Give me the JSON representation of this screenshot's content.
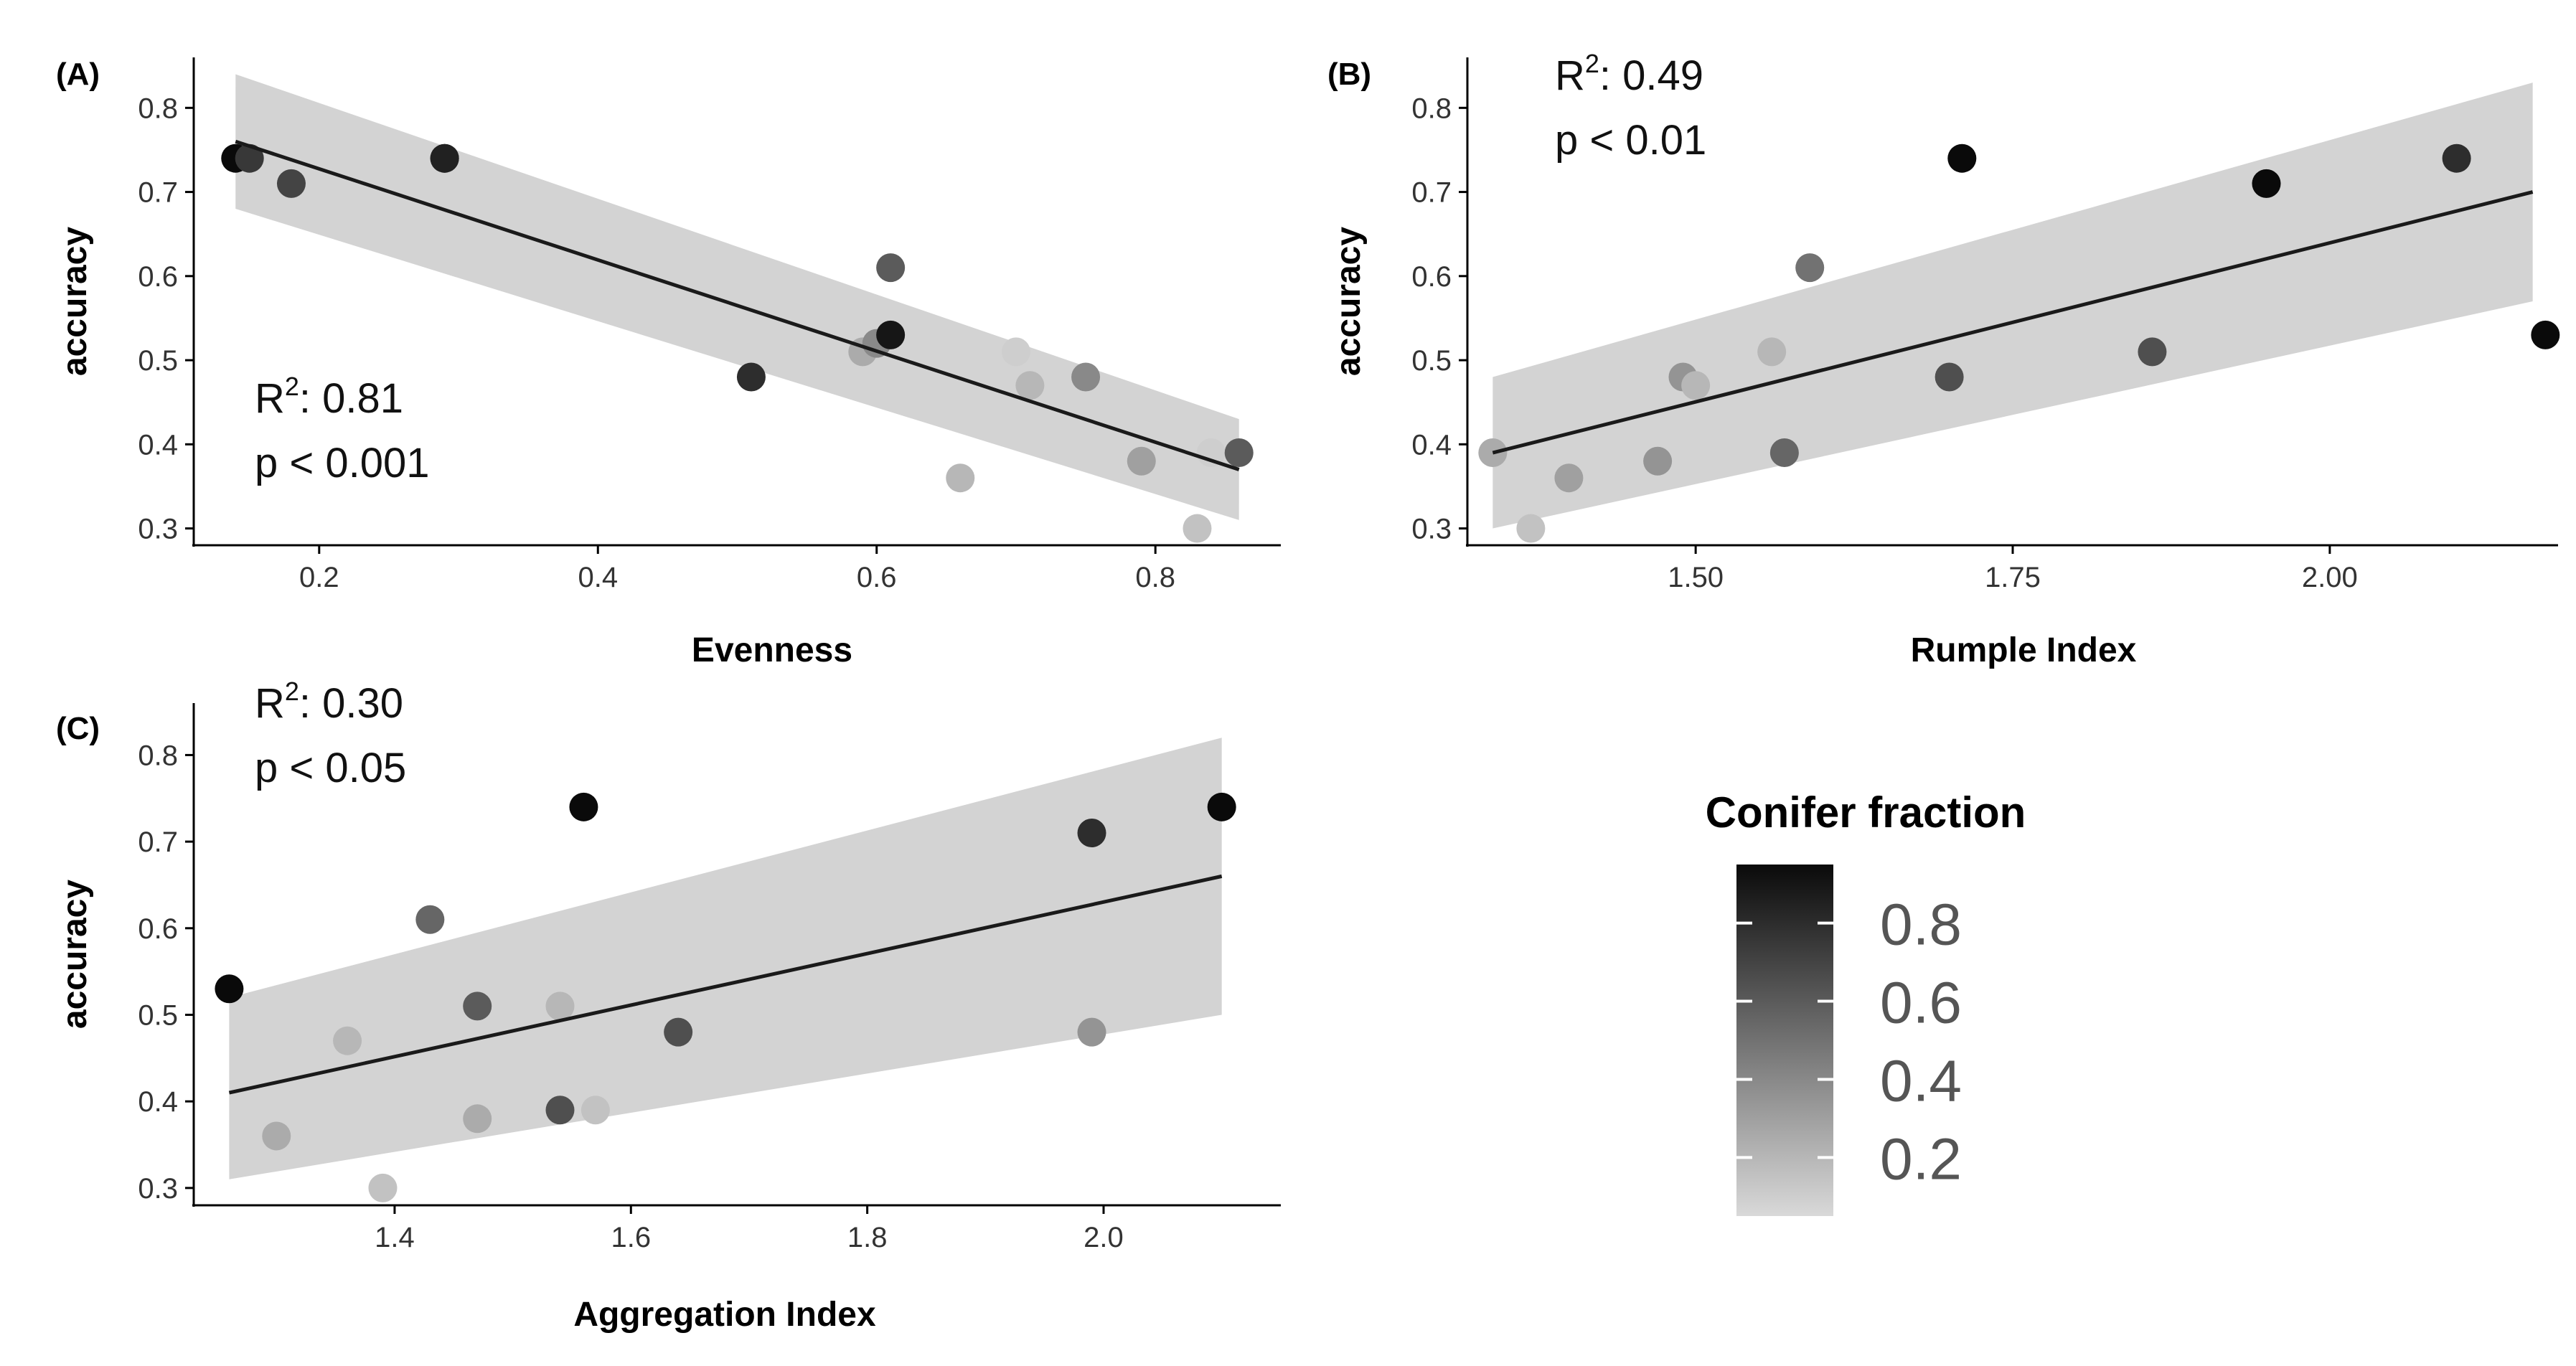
{
  "colors": {
    "low": "#d9d9d9",
    "high": "#0a0a0a",
    "band": "#d3d3d3",
    "line": "#1a1a1a"
  },
  "legend": {
    "title": "Conifer fraction",
    "ticks": [
      0.8,
      0.6,
      0.4,
      0.2
    ],
    "tick_labels": [
      "0.8",
      "0.6",
      "0.4",
      "0.2"
    ],
    "range": [
      0.05,
      0.95
    ]
  },
  "chart_data": [
    {
      "id": "A",
      "panel_label": "(A)",
      "type": "scatter",
      "xlabel": "Evenness",
      "ylabel": "accuracy",
      "xlim": [
        0.11,
        0.89
      ],
      "ylim": [
        0.28,
        0.86
      ],
      "xticks": [
        0.2,
        0.4,
        0.6,
        0.8
      ],
      "xtick_labels": [
        "0.2",
        "0.4",
        "0.6",
        "0.8"
      ],
      "yticks": [
        0.3,
        0.4,
        0.5,
        0.6,
        0.7,
        0.8
      ],
      "ytick_labels": [
        "0.3",
        "0.4",
        "0.5",
        "0.6",
        "0.7",
        "0.8"
      ],
      "r2_prefix": "R",
      "r2_sup": "2",
      "r2_value": ": 0.81",
      "p_text": "p < 0.001",
      "stat_pos": "bottom-left",
      "fit": {
        "x": [
          0.14,
          0.86
        ],
        "y": [
          0.76,
          0.37
        ],
        "lower": [
          0.68,
          0.31
        ],
        "upper": [
          0.84,
          0.43
        ]
      },
      "points": [
        {
          "x": 0.14,
          "y": 0.74,
          "c": 0.95
        },
        {
          "x": 0.15,
          "y": 0.74,
          "c": 0.75
        },
        {
          "x": 0.18,
          "y": 0.71,
          "c": 0.7
        },
        {
          "x": 0.29,
          "y": 0.74,
          "c": 0.95
        },
        {
          "x": 0.29,
          "y": 0.74,
          "c": 0.85
        },
        {
          "x": 0.51,
          "y": 0.48,
          "c": 0.8
        },
        {
          "x": 0.59,
          "y": 0.51,
          "c": 0.25
        },
        {
          "x": 0.6,
          "y": 0.52,
          "c": 0.4
        },
        {
          "x": 0.61,
          "y": 0.53,
          "c": 0.9
        },
        {
          "x": 0.61,
          "y": 0.61,
          "c": 0.6
        },
        {
          "x": 0.66,
          "y": 0.36,
          "c": 0.2
        },
        {
          "x": 0.7,
          "y": 0.51,
          "c": 0.1
        },
        {
          "x": 0.71,
          "y": 0.47,
          "c": 0.2
        },
        {
          "x": 0.75,
          "y": 0.48,
          "c": 0.4
        },
        {
          "x": 0.79,
          "y": 0.38,
          "c": 0.3
        },
        {
          "x": 0.83,
          "y": 0.3,
          "c": 0.15
        },
        {
          "x": 0.84,
          "y": 0.39,
          "c": 0.1
        },
        {
          "x": 0.86,
          "y": 0.39,
          "c": 0.6
        }
      ]
    },
    {
      "id": "B",
      "panel_label": "(B)",
      "type": "scatter",
      "xlabel": "Rumple Index",
      "ylabel": "accuracy",
      "xlim": [
        1.32,
        2.18
      ],
      "ylim": [
        0.28,
        0.86
      ],
      "xticks": [
        1.5,
        1.75,
        2.0
      ],
      "xtick_labels": [
        "1.50",
        "1.75",
        "2.00"
      ],
      "yticks": [
        0.3,
        0.4,
        0.5,
        0.6,
        0.7,
        0.8
      ],
      "ytick_labels": [
        "0.3",
        "0.4",
        "0.5",
        "0.6",
        "0.7",
        "0.8"
      ],
      "r2_prefix": "R",
      "r2_sup": "2",
      "r2_value": ": 0.49",
      "p_text": "p < 0.01",
      "stat_pos": "top-left",
      "fit": {
        "x": [
          1.34,
          2.16
        ],
        "y": [
          0.39,
          0.7
        ],
        "lower": [
          0.3,
          0.57
        ],
        "upper": [
          0.48,
          0.83
        ]
      },
      "points": [
        {
          "x": 1.34,
          "y": 0.39,
          "c": 0.25
        },
        {
          "x": 1.37,
          "y": 0.3,
          "c": 0.15
        },
        {
          "x": 1.4,
          "y": 0.36,
          "c": 0.3
        },
        {
          "x": 1.47,
          "y": 0.38,
          "c": 0.35
        },
        {
          "x": 1.49,
          "y": 0.48,
          "c": 0.35
        },
        {
          "x": 1.5,
          "y": 0.47,
          "c": 0.2
        },
        {
          "x": 1.56,
          "y": 0.51,
          "c": 0.2
        },
        {
          "x": 1.57,
          "y": 0.39,
          "c": 0.55
        },
        {
          "x": 1.59,
          "y": 0.61,
          "c": 0.5
        },
        {
          "x": 1.7,
          "y": 0.48,
          "c": 0.65
        },
        {
          "x": 1.71,
          "y": 0.74,
          "c": 0.95
        },
        {
          "x": 1.86,
          "y": 0.51,
          "c": 0.65
        },
        {
          "x": 1.95,
          "y": 0.71,
          "c": 0.25
        },
        {
          "x": 1.95,
          "y": 0.71,
          "c": 0.95
        },
        {
          "x": 2.1,
          "y": 0.74,
          "c": 0.8
        },
        {
          "x": 2.17,
          "y": 0.53,
          "c": 0.95
        }
      ]
    },
    {
      "id": "C",
      "panel_label": "(C)",
      "type": "scatter",
      "xlabel": "Aggregation Index",
      "ylabel": "accuracy",
      "xlim": [
        1.23,
        2.15
      ],
      "ylim": [
        0.28,
        0.86
      ],
      "xticks": [
        1.4,
        1.6,
        1.8,
        2.0
      ],
      "xtick_labels": [
        "1.4",
        "1.6",
        "1.8",
        "2.0"
      ],
      "yticks": [
        0.3,
        0.4,
        0.5,
        0.6,
        0.7,
        0.8
      ],
      "ytick_labels": [
        "0.3",
        "0.4",
        "0.5",
        "0.6",
        "0.7",
        "0.8"
      ],
      "r2_prefix": "R",
      "r2_sup": "2",
      "r2_value": ": 0.30",
      "p_text": "p < 0.05",
      "stat_pos": "top-left",
      "fit": {
        "x": [
          1.26,
          2.1
        ],
        "y": [
          0.41,
          0.66
        ],
        "lower": [
          0.31,
          0.5
        ],
        "upper": [
          0.52,
          0.82
        ]
      },
      "points": [
        {
          "x": 1.26,
          "y": 0.53,
          "c": 0.95
        },
        {
          "x": 1.3,
          "y": 0.36,
          "c": 0.25
        },
        {
          "x": 1.36,
          "y": 0.47,
          "c": 0.2
        },
        {
          "x": 1.39,
          "y": 0.3,
          "c": 0.15
        },
        {
          "x": 1.43,
          "y": 0.61,
          "c": 0.55
        },
        {
          "x": 1.47,
          "y": 0.51,
          "c": 0.6
        },
        {
          "x": 1.47,
          "y": 0.38,
          "c": 0.25
        },
        {
          "x": 1.54,
          "y": 0.51,
          "c": 0.2
        },
        {
          "x": 1.54,
          "y": 0.39,
          "c": 0.65
        },
        {
          "x": 1.56,
          "y": 0.74,
          "c": 0.95
        },
        {
          "x": 1.57,
          "y": 0.39,
          "c": 0.15
        },
        {
          "x": 1.64,
          "y": 0.48,
          "c": 0.65
        },
        {
          "x": 1.99,
          "y": 0.71,
          "c": 0.8
        },
        {
          "x": 1.99,
          "y": 0.48,
          "c": 0.35
        },
        {
          "x": 2.1,
          "y": 0.74,
          "c": 0.95
        }
      ]
    }
  ]
}
